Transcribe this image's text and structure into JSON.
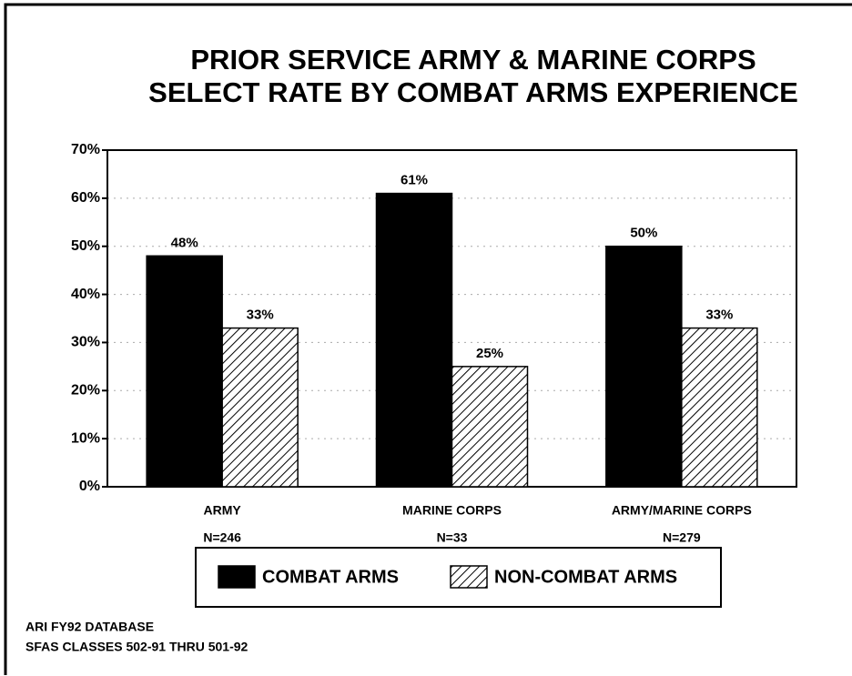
{
  "chart_data": {
    "type": "bar",
    "title": [
      "PRIOR SERVICE ARMY & MARINE CORPS",
      "SELECT RATE BY COMBAT ARMS EXPERIENCE"
    ],
    "categories": [
      "ARMY",
      "MARINE CORPS",
      "ARMY/MARINE CORPS"
    ],
    "category_notes": [
      "N=246",
      "N=33",
      "N=279"
    ],
    "series": [
      {
        "name": "COMBAT ARMS",
        "color": "#000000",
        "pattern": "solid",
        "values": [
          48,
          61,
          50
        ],
        "value_labels": [
          "48%",
          "61%",
          "50%"
        ]
      },
      {
        "name": "NON-COMBAT ARMS",
        "color": "#000000",
        "pattern": "hatch",
        "values": [
          33,
          25,
          33
        ],
        "value_labels": [
          "33%",
          "25%",
          "33%"
        ]
      }
    ],
    "ylim": [
      0,
      70
    ],
    "yticks": [
      {
        "value": 0,
        "label": "0%"
      },
      {
        "value": 10,
        "label": "10%"
      },
      {
        "value": 20,
        "label": "20%"
      },
      {
        "value": 30,
        "label": "30%"
      },
      {
        "value": 40,
        "label": "40%"
      },
      {
        "value": 50,
        "label": "50%"
      },
      {
        "value": 60,
        "label": "60%"
      },
      {
        "value": 70,
        "label": "70%"
      }
    ],
    "grid": true,
    "legend": "bottom",
    "footnotes": [
      "ARI FY92 DATABASE",
      "SFAS CLASSES 502-91 THRU 501-92"
    ]
  }
}
